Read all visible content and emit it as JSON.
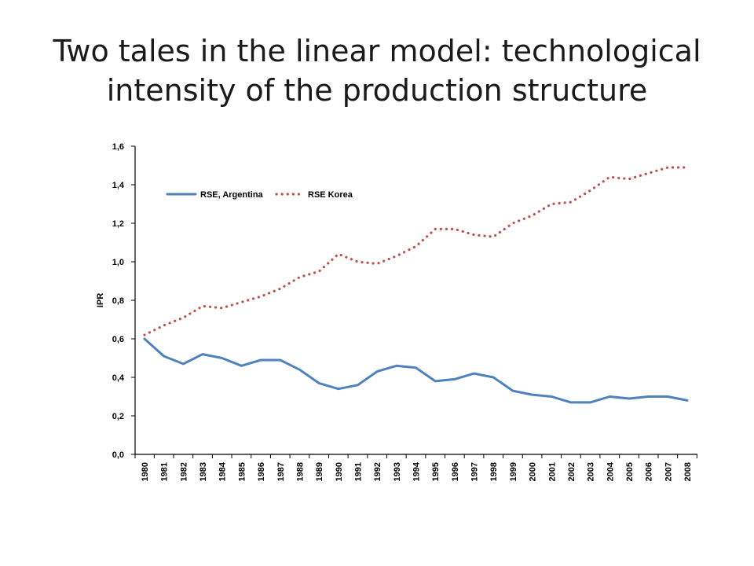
{
  "slide": {
    "title_line1": "Two tales in the linear model: technological",
    "title_line2": "intensity of the production structure"
  },
  "chart_data": {
    "type": "line",
    "ylabel": "IPR",
    "xlabel": "",
    "ylim": [
      0.0,
      1.6
    ],
    "yticks": [
      "0,0",
      "0,2",
      "0,4",
      "0,6",
      "0,8",
      "1,0",
      "1,2",
      "1,4",
      "1,6"
    ],
    "grid": false,
    "legend_position": "top-left",
    "categories": [
      "1980",
      "1981",
      "1982",
      "1983",
      "1984",
      "1985",
      "1986",
      "1987",
      "1988",
      "1989",
      "1990",
      "1991",
      "1992",
      "1993",
      "1994",
      "1995",
      "1996",
      "1997",
      "1998",
      "1999",
      "2000",
      "2001",
      "2002",
      "2003",
      "2004",
      "2005",
      "2006",
      "2007",
      "2008"
    ],
    "series": [
      {
        "name": "RSE, Argentina",
        "color": "#4f81bd",
        "style": "solid",
        "values": [
          0.6,
          0.51,
          0.47,
          0.52,
          0.5,
          0.46,
          0.49,
          0.49,
          0.44,
          0.37,
          0.34,
          0.36,
          0.43,
          0.46,
          0.45,
          0.38,
          0.39,
          0.42,
          0.4,
          0.33,
          0.31,
          0.3,
          0.27,
          0.27,
          0.3,
          0.29,
          0.3,
          0.3,
          0.28
        ]
      },
      {
        "name": "RSE Korea",
        "color": "#c0504d",
        "style": "dotted",
        "values": [
          0.62,
          0.67,
          0.71,
          0.77,
          0.76,
          0.79,
          0.82,
          0.86,
          0.92,
          0.95,
          1.04,
          1.0,
          0.99,
          1.03,
          1.08,
          1.17,
          1.17,
          1.14,
          1.13,
          1.2,
          1.24,
          1.3,
          1.31,
          1.37,
          1.44,
          1.43,
          1.46,
          1.49,
          1.49
        ]
      }
    ]
  }
}
